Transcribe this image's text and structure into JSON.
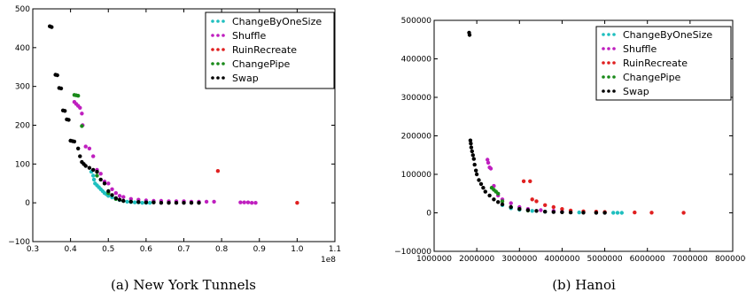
{
  "chart_data": [
    {
      "type": "scatter",
      "caption": "(a) New York Tunnels",
      "x_offset_label": "1e8",
      "xlim": [
        0.3,
        1.1
      ],
      "ylim": [
        -100,
        500
      ],
      "xticks": [
        "0.3",
        "0.4",
        "0.5",
        "0.6",
        "0.7",
        "0.8",
        "0.9",
        "1.0",
        "1.1"
      ],
      "yticks": [
        "−100",
        "0",
        "100",
        "200",
        "300",
        "400",
        "500"
      ],
      "legend_position": "top-right",
      "series": [
        {
          "name": "ChangeByOneSize",
          "color": "#1fbfbf",
          "points": [
            [
              0.455,
              80
            ],
            [
              0.46,
              70
            ],
            [
              0.462,
              60
            ],
            [
              0.465,
              50
            ],
            [
              0.47,
              45
            ],
            [
              0.475,
              40
            ],
            [
              0.48,
              35
            ],
            [
              0.485,
              30
            ],
            [
              0.49,
              25
            ],
            [
              0.495,
              22
            ],
            [
              0.5,
              18
            ],
            [
              0.51,
              14
            ],
            [
              0.52,
              10
            ],
            [
              0.53,
              7
            ],
            [
              0.54,
              5
            ],
            [
              0.55,
              3
            ],
            [
              0.56,
              2
            ],
            [
              0.57,
              1
            ],
            [
              0.58,
              1
            ],
            [
              0.59,
              0
            ],
            [
              0.6,
              0
            ],
            [
              0.61,
              0
            ]
          ]
        },
        {
          "name": "Shuffle",
          "color": "#bf1fbf",
          "points": [
            [
              0.41,
              260
            ],
            [
              0.415,
              255
            ],
            [
              0.42,
              250
            ],
            [
              0.425,
              245
            ],
            [
              0.43,
              230
            ],
            [
              0.432,
              200
            ],
            [
              0.44,
              145
            ],
            [
              0.45,
              140
            ],
            [
              0.46,
              120
            ],
            [
              0.47,
              85
            ],
            [
              0.48,
              75
            ],
            [
              0.49,
              55
            ],
            [
              0.5,
              50
            ],
            [
              0.51,
              35
            ],
            [
              0.52,
              25
            ],
            [
              0.53,
              18
            ],
            [
              0.54,
              15
            ],
            [
              0.56,
              10
            ],
            [
              0.58,
              8
            ],
            [
              0.6,
              6
            ],
            [
              0.62,
              5
            ],
            [
              0.64,
              5
            ],
            [
              0.66,
              4
            ],
            [
              0.68,
              4
            ],
            [
              0.7,
              4
            ],
            [
              0.72,
              3
            ],
            [
              0.74,
              3
            ],
            [
              0.76,
              3
            ],
            [
              0.78,
              3
            ],
            [
              0.85,
              1
            ],
            [
              0.86,
              1
            ],
            [
              0.87,
              1
            ],
            [
              0.88,
              0
            ],
            [
              0.89,
              0
            ]
          ]
        },
        {
          "name": "RuinRecreate",
          "color": "#e02020",
          "points": [
            [
              0.79,
              82
            ],
            [
              1.0,
              0
            ]
          ]
        },
        {
          "name": "ChangePipe",
          "color": "#1a8a1a",
          "points": [
            [
              0.41,
              278
            ],
            [
              0.415,
              277
            ],
            [
              0.42,
              276
            ],
            [
              0.43,
              198
            ],
            [
              0.47,
              70
            ],
            [
              0.5,
              25
            ],
            [
              0.52,
              10
            ],
            [
              0.54,
              5
            ],
            [
              0.56,
              3
            ],
            [
              0.58,
              2
            ],
            [
              0.6,
              1
            ],
            [
              0.62,
              1
            ]
          ]
        },
        {
          "name": "Swap",
          "color": "#000000",
          "points": [
            [
              0.345,
              455
            ],
            [
              0.35,
              453
            ],
            [
              0.36,
              330
            ],
            [
              0.365,
              329
            ],
            [
              0.37,
              296
            ],
            [
              0.375,
              295
            ],
            [
              0.38,
              238
            ],
            [
              0.385,
              237
            ],
            [
              0.39,
              215
            ],
            [
              0.395,
              214
            ],
            [
              0.4,
              160
            ],
            [
              0.405,
              159
            ],
            [
              0.41,
              158
            ],
            [
              0.42,
              140
            ],
            [
              0.425,
              120
            ],
            [
              0.43,
              105
            ],
            [
              0.435,
              100
            ],
            [
              0.44,
              95
            ],
            [
              0.45,
              90
            ],
            [
              0.46,
              85
            ],
            [
              0.47,
              80
            ],
            [
              0.48,
              60
            ],
            [
              0.49,
              50
            ],
            [
              0.5,
              30
            ],
            [
              0.51,
              20
            ],
            [
              0.52,
              12
            ],
            [
              0.53,
              8
            ],
            [
              0.54,
              5
            ],
            [
              0.56,
              3
            ],
            [
              0.58,
              2
            ],
            [
              0.6,
              1
            ],
            [
              0.62,
              1
            ],
            [
              0.64,
              0
            ],
            [
              0.66,
              0
            ],
            [
              0.68,
              0
            ],
            [
              0.7,
              0
            ],
            [
              0.72,
              0
            ],
            [
              0.74,
              0
            ]
          ]
        }
      ]
    },
    {
      "type": "scatter",
      "caption": "(b) Hanoi",
      "xlim": [
        1000000,
        8000000
      ],
      "ylim": [
        -100000,
        500000
      ],
      "xticks": [
        "1000000",
        "2000000",
        "3000000",
        "4000000",
        "5000000",
        "6000000",
        "7000000",
        "8000000"
      ],
      "yticks": [
        "−100000",
        "0",
        "100000",
        "200000",
        "300000",
        "400000",
        "500000"
      ],
      "legend_position": "top-right",
      "series": [
        {
          "name": "ChangeByOneSize",
          "color": "#1fbfbf",
          "points": [
            [
              2600000,
              20000
            ],
            [
              2800000,
              12000
            ],
            [
              3000000,
              8000
            ],
            [
              3300000,
              5000
            ],
            [
              3600000,
              3000
            ],
            [
              4000000,
              2000
            ],
            [
              4400000,
              1000
            ],
            [
              4800000,
              800
            ],
            [
              5000000,
              500
            ],
            [
              5200000,
              300
            ],
            [
              5300000,
              200
            ],
            [
              5400000,
              100
            ]
          ]
        },
        {
          "name": "Shuffle",
          "color": "#bf1fbf",
          "points": [
            [
              2250000,
              138000
            ],
            [
              2270000,
              130000
            ],
            [
              2300000,
              118000
            ],
            [
              2330000,
              115000
            ],
            [
              2400000,
              70000
            ],
            [
              2500000,
              45000
            ],
            [
              2600000,
              35000
            ],
            [
              2800000,
              25000
            ],
            [
              3000000,
              15000
            ],
            [
              3200000,
              10000
            ],
            [
              3500000,
              7000
            ],
            [
              3800000,
              5000
            ],
            [
              4000000,
              3000
            ]
          ]
        },
        {
          "name": "RuinRecreate",
          "color": "#e02020",
          "points": [
            [
              3100000,
              82000
            ],
            [
              3250000,
              82000
            ],
            [
              3300000,
              35000
            ],
            [
              3400000,
              30000
            ],
            [
              3600000,
              20000
            ],
            [
              3800000,
              15000
            ],
            [
              4000000,
              10000
            ],
            [
              4200000,
              6000
            ],
            [
              4500000,
              4000
            ],
            [
              4800000,
              3000
            ],
            [
              5000000,
              2000
            ],
            [
              5700000,
              1000
            ],
            [
              6100000,
              500
            ],
            [
              6850000,
              200
            ]
          ]
        },
        {
          "name": "ChangePipe",
          "color": "#1a8a1a",
          "points": [
            [
              2350000,
              65000
            ],
            [
              2400000,
              60000
            ],
            [
              2450000,
              55000
            ],
            [
              2500000,
              50000
            ],
            [
              2600000,
              30000
            ],
            [
              2800000,
              15000
            ],
            [
              3000000,
              10000
            ],
            [
              3200000,
              6000
            ]
          ]
        },
        {
          "name": "Swap",
          "color": "#000000",
          "points": [
            [
              1820000,
              468000
            ],
            [
              1830000,
              462000
            ],
            [
              1850000,
              188000
            ],
            [
              1860000,
              180000
            ],
            [
              1870000,
              170000
            ],
            [
              1890000,
              160000
            ],
            [
              1910000,
              150000
            ],
            [
              1930000,
              140000
            ],
            [
              1950000,
              125000
            ],
            [
              1980000,
              110000
            ],
            [
              2000000,
              100000
            ],
            [
              2050000,
              85000
            ],
            [
              2100000,
              75000
            ],
            [
              2150000,
              65000
            ],
            [
              2200000,
              55000
            ],
            [
              2300000,
              45000
            ],
            [
              2400000,
              35000
            ],
            [
              2500000,
              28000
            ],
            [
              2600000,
              22000
            ],
            [
              2800000,
              15000
            ],
            [
              3000000,
              10000
            ],
            [
              3200000,
              7000
            ],
            [
              3400000,
              5000
            ],
            [
              3600000,
              3000
            ],
            [
              3800000,
              2000
            ],
            [
              4000000,
              1500
            ],
            [
              4200000,
              1000
            ],
            [
              4500000,
              500
            ],
            [
              4800000,
              300
            ],
            [
              5000000,
              200
            ]
          ]
        }
      ]
    }
  ]
}
